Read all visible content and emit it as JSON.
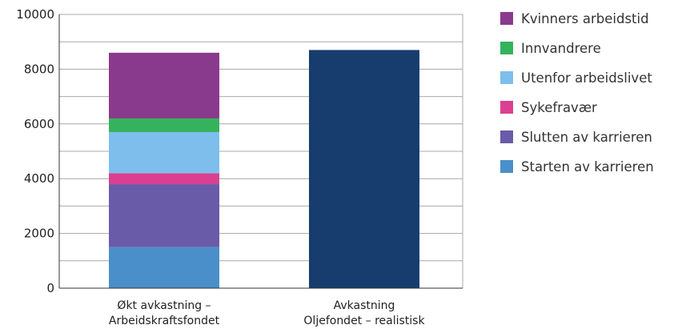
{
  "chart_data": {
    "type": "bar",
    "stacked": true,
    "ylim": [
      0,
      10000
    ],
    "yticks": [
      0,
      2000,
      4000,
      6000,
      8000,
      10000
    ],
    "grid": true,
    "legend_position": "right",
    "categories": [
      [
        "Økt avkastning –",
        "Arbeidskraftsfondet"
      ],
      [
        "Avkastning",
        "Oljefondet – realistisk"
      ]
    ],
    "series": [
      {
        "name": "Starten av karrieren",
        "color": "#4a8fc9",
        "values": [
          1500,
          0
        ]
      },
      {
        "name": "Slutten av karrieren",
        "color": "#6a5ba8",
        "values": [
          2300,
          0
        ]
      },
      {
        "name": "Sykefravær",
        "color": "#d94190",
        "values": [
          400,
          0
        ]
      },
      {
        "name": "Utenfor arbeidslivet",
        "color": "#7ebeec",
        "values": [
          1500,
          0
        ]
      },
      {
        "name": "Innvandrere",
        "color": "#35b25c",
        "values": [
          500,
          0
        ]
      },
      {
        "name": "Kvinners arbeidstid",
        "color": "#8a3a8c",
        "values": [
          2400,
          0
        ]
      },
      {
        "name": "",
        "color": "#163d6e",
        "values": [
          0,
          8700
        ]
      }
    ],
    "legend_order": [
      "Kvinners arbeidstid",
      "Innvandrere",
      "Utenfor arbeidslivet",
      "Sykefravær",
      "Slutten av karrieren",
      "Starten av karrieren"
    ]
  }
}
